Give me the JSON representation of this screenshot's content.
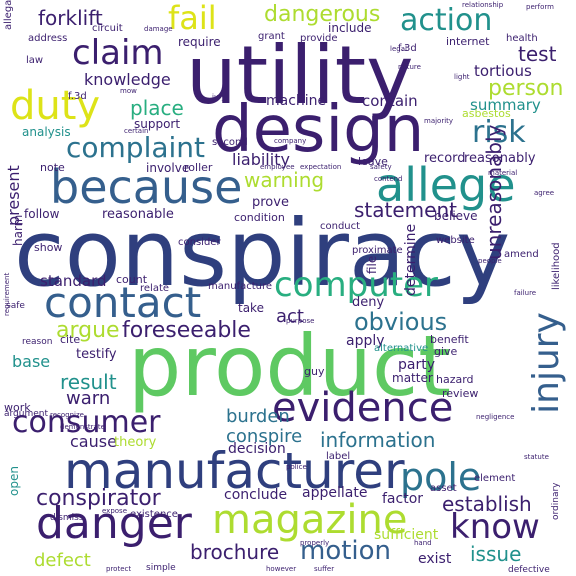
{
  "palette": {
    "indigo": "#3b1f6e",
    "navy": "#2f3f7e",
    "blue": "#355f8d",
    "steel": "#2c728e",
    "teal": "#21918c",
    "sea": "#28ae80",
    "green": "#5ec962",
    "lime": "#addc30",
    "yellow": "#dde318"
  },
  "words": [
    {
      "text": "conspiracy",
      "color": "navy",
      "weight": 1.0
    },
    {
      "text": "product",
      "color": "green",
      "weight": 0.88
    },
    {
      "text": "utility",
      "color": "indigo",
      "weight": 0.86
    },
    {
      "text": "design",
      "color": "indigo",
      "weight": 0.78
    },
    {
      "text": "manufacturer",
      "color": "navy",
      "weight": 0.66
    },
    {
      "text": "because",
      "color": "blue",
      "weight": 0.56
    },
    {
      "text": "allege",
      "color": "teal",
      "weight": 0.52
    },
    {
      "text": "evidence",
      "color": "indigo",
      "weight": 0.5
    },
    {
      "text": "injury",
      "color": "blue",
      "weight": 0.42
    },
    {
      "text": "magazine",
      "color": "lime",
      "weight": 0.44
    },
    {
      "text": "danger",
      "color": "indigo",
      "weight": 0.48
    },
    {
      "text": "contact",
      "color": "blue",
      "weight": 0.46
    },
    {
      "text": "computer",
      "color": "sea",
      "weight": 0.4
    },
    {
      "text": "duty",
      "color": "yellow",
      "weight": 0.42
    },
    {
      "text": "claim",
      "color": "indigo",
      "weight": 0.36
    },
    {
      "text": "pole",
      "color": "steel",
      "weight": 0.4
    },
    {
      "text": "consumer",
      "color": "indigo",
      "weight": 0.32
    },
    {
      "text": "know",
      "color": "indigo",
      "weight": 0.34
    },
    {
      "text": "fail",
      "color": "yellow",
      "weight": 0.3
    },
    {
      "text": "action",
      "color": "teal",
      "weight": 0.28
    },
    {
      "text": "risk",
      "color": "steel",
      "weight": 0.3
    },
    {
      "text": "complaint",
      "color": "steel",
      "weight": 0.28
    },
    {
      "text": "motion",
      "color": "blue",
      "weight": 0.24
    },
    {
      "text": "obvious",
      "color": "steel",
      "weight": 0.24
    },
    {
      "text": "foreseeable",
      "color": "indigo",
      "weight": 0.22
    },
    {
      "text": "information",
      "color": "steel",
      "weight": 0.2
    },
    {
      "text": "unreasonably",
      "color": "indigo",
      "weight": 0.2
    },
    {
      "text": "conspirator",
      "color": "indigo",
      "weight": 0.2
    },
    {
      "text": "dangerous",
      "color": "lime",
      "weight": 0.2
    },
    {
      "text": "warning",
      "color": "lime",
      "weight": 0.2
    },
    {
      "text": "statement",
      "color": "indigo",
      "weight": 0.18
    },
    {
      "text": "forklift",
      "color": "indigo",
      "weight": 0.17
    },
    {
      "text": "person",
      "color": "lime",
      "weight": 0.18
    },
    {
      "text": "argue",
      "color": "lime",
      "weight": 0.18
    },
    {
      "text": "result",
      "color": "teal",
      "weight": 0.16
    },
    {
      "text": "issue",
      "color": "teal",
      "weight": 0.16
    },
    {
      "text": "brochure",
      "color": "indigo",
      "weight": 0.16
    },
    {
      "text": "establish",
      "color": "indigo",
      "weight": 0.16
    },
    {
      "text": "place",
      "color": "sea",
      "weight": 0.16
    },
    {
      "text": "test",
      "color": "indigo",
      "weight": 0.16
    },
    {
      "text": "defect",
      "color": "lime",
      "weight": 0.15
    },
    {
      "text": "burden",
      "color": "steel",
      "weight": 0.15
    },
    {
      "text": "conspire",
      "color": "steel",
      "weight": 0.14
    },
    {
      "text": "knowledge",
      "color": "indigo",
      "weight": 0.13
    },
    {
      "text": "tortious",
      "color": "indigo",
      "weight": 0.13
    },
    {
      "text": "summary",
      "color": "teal",
      "weight": 0.13
    },
    {
      "text": "warn",
      "color": "indigo",
      "weight": 0.14
    },
    {
      "text": "liability",
      "color": "indigo",
      "weight": 0.12
    },
    {
      "text": "contain",
      "color": "indigo",
      "weight": 0.12
    },
    {
      "text": "machine",
      "color": "indigo",
      "weight": 0.12
    },
    {
      "text": "cause",
      "color": "indigo",
      "weight": 0.12
    },
    {
      "text": "base",
      "color": "teal",
      "weight": 0.12
    },
    {
      "text": "act",
      "color": "indigo",
      "weight": 0.12
    },
    {
      "text": "present",
      "color": "indigo",
      "weight": 0.12
    },
    {
      "text": "conclude",
      "color": "indigo",
      "weight": 0.11
    },
    {
      "text": "sufficient",
      "color": "lime",
      "weight": 0.11
    },
    {
      "text": "factor",
      "color": "indigo",
      "weight": 0.11
    },
    {
      "text": "standard",
      "color": "indigo",
      "weight": 0.11
    },
    {
      "text": "determine",
      "color": "indigo",
      "weight": 0.11
    },
    {
      "text": "apply",
      "color": "indigo",
      "weight": 0.1
    },
    {
      "text": "reasonably",
      "color": "indigo",
      "weight": 0.1
    },
    {
      "text": "decision",
      "color": "indigo",
      "weight": 0.1
    },
    {
      "text": "appellate",
      "color": "indigo",
      "weight": 0.1
    },
    {
      "text": "exist",
      "color": "indigo",
      "weight": 0.1
    },
    {
      "text": "party",
      "color": "indigo",
      "weight": 0.1
    },
    {
      "text": "theory",
      "color": "lime",
      "weight": 0.1
    },
    {
      "text": "testify",
      "color": "indigo",
      "weight": 0.09
    },
    {
      "text": "reasonable",
      "color": "indigo",
      "weight": 0.09
    },
    {
      "text": "deny",
      "color": "indigo",
      "weight": 0.09
    },
    {
      "text": "record",
      "color": "indigo",
      "weight": 0.09
    },
    {
      "text": "prove",
      "color": "indigo",
      "weight": 0.09
    },
    {
      "text": "require",
      "color": "indigo",
      "weight": 0.09
    },
    {
      "text": "matter",
      "color": "indigo",
      "weight": 0.09
    },
    {
      "text": "follow",
      "color": "indigo",
      "weight": 0.09
    },
    {
      "text": "harm",
      "color": "indigo",
      "weight": 0.09
    },
    {
      "text": "file",
      "color": "indigo",
      "weight": 0.09
    },
    {
      "text": "take",
      "color": "indigo",
      "weight": 0.09
    },
    {
      "text": "open",
      "color": "teal",
      "weight": 0.09
    },
    {
      "text": "support",
      "color": "indigo",
      "weight": 0.08
    },
    {
      "text": "involve",
      "color": "indigo",
      "weight": 0.08
    },
    {
      "text": "believe",
      "color": "indigo",
      "weight": 0.08
    },
    {
      "text": "analysis",
      "color": "teal",
      "weight": 0.08
    },
    {
      "text": "internet",
      "color": "indigo",
      "weight": 0.07
    },
    {
      "text": "include",
      "color": "indigo",
      "weight": 0.08
    },
    {
      "text": "asbestos",
      "color": "lime",
      "weight": 0.07
    },
    {
      "text": "leave",
      "color": "indigo",
      "weight": 0.07
    },
    {
      "text": "condition",
      "color": "indigo",
      "weight": 0.07
    },
    {
      "text": "roller",
      "color": "indigo",
      "weight": 0.07
    },
    {
      "text": "note",
      "color": "indigo",
      "weight": 0.07
    },
    {
      "text": "count",
      "color": "indigo",
      "weight": 0.07
    },
    {
      "text": "benefit",
      "color": "indigo",
      "weight": 0.07
    },
    {
      "text": "give",
      "color": "indigo",
      "weight": 0.07
    },
    {
      "text": "review",
      "color": "indigo",
      "weight": 0.07
    },
    {
      "text": "hazard",
      "color": "indigo",
      "weight": 0.07
    },
    {
      "text": "cite",
      "color": "indigo",
      "weight": 0.07
    },
    {
      "text": "show",
      "color": "indigo",
      "weight": 0.07
    },
    {
      "text": "work",
      "color": "indigo",
      "weight": 0.07
    },
    {
      "text": "guy",
      "color": "indigo",
      "weight": 0.07
    },
    {
      "text": "second",
      "color": "indigo",
      "weight": 0.06
    },
    {
      "text": "label",
      "color": "indigo",
      "weight": 0.06
    },
    {
      "text": "element",
      "color": "indigo",
      "weight": 0.06
    },
    {
      "text": "asset",
      "color": "indigo",
      "weight": 0.06
    },
    {
      "text": "existence",
      "color": "indigo",
      "weight": 0.06
    },
    {
      "text": "alternative",
      "color": "teal",
      "weight": 0.06
    },
    {
      "text": "proximate",
      "color": "indigo",
      "weight": 0.06
    },
    {
      "text": "website",
      "color": "indigo",
      "weight": 0.06
    },
    {
      "text": "amend",
      "color": "indigo",
      "weight": 0.06
    },
    {
      "text": "conduct",
      "color": "indigo",
      "weight": 0.06
    },
    {
      "text": "consider",
      "color": "indigo",
      "weight": 0.06
    },
    {
      "text": "manufacture",
      "color": "indigo",
      "weight": 0.06
    },
    {
      "text": "relate",
      "color": "indigo",
      "weight": 0.05
    },
    {
      "text": "provide",
      "color": "indigo",
      "weight": 0.05
    },
    {
      "text": "grant",
      "color": "indigo",
      "weight": 0.05
    },
    {
      "text": "circuit",
      "color": "indigo",
      "weight": 0.05
    },
    {
      "text": "address",
      "color": "indigo",
      "weight": 0.05
    },
    {
      "text": "law",
      "color": "indigo",
      "weight": 0.05
    },
    {
      "text": "allegation",
      "color": "indigo",
      "weight": 0.05
    },
    {
      "text": "health",
      "color": "indigo",
      "weight": 0.05
    },
    {
      "text": "likelihood",
      "color": "indigo",
      "weight": 0.05
    },
    {
      "text": "argument",
      "color": "indigo",
      "weight": 0.05
    },
    {
      "text": "dismiss",
      "color": "indigo",
      "weight": 0.05
    },
    {
      "text": "simple",
      "color": "indigo",
      "weight": 0.05
    },
    {
      "text": "ordinary",
      "color": "indigo",
      "weight": 0.05
    },
    {
      "text": "defective",
      "color": "indigo",
      "weight": 0.05
    },
    {
      "text": "safe",
      "color": "indigo",
      "weight": 0.04
    },
    {
      "text": "f.3d",
      "color": "indigo",
      "weight": 0.05
    },
    {
      "text": "f.3d",
      "color": "indigo",
      "weight": 0.05
    },
    {
      "text": "relationship",
      "color": "indigo",
      "weight": 0.03
    },
    {
      "text": "perform",
      "color": "indigo",
      "weight": 0.03
    },
    {
      "text": "light",
      "color": "indigo",
      "weight": 0.03
    },
    {
      "text": "nature",
      "color": "indigo",
      "weight": 0.03
    },
    {
      "text": "legal",
      "color": "indigo",
      "weight": 0.03
    },
    {
      "text": "agree",
      "color": "indigo",
      "weight": 0.03
    },
    {
      "text": "material",
      "color": "indigo",
      "weight": 0.03
    },
    {
      "text": "majority",
      "color": "indigo",
      "weight": 0.03
    },
    {
      "text": "failure",
      "color": "indigo",
      "weight": 0.03
    },
    {
      "text": "people",
      "color": "indigo",
      "weight": 0.03
    },
    {
      "text": "employee",
      "color": "indigo",
      "weight": 0.03
    },
    {
      "text": "expectation",
      "color": "indigo",
      "weight": 0.03
    },
    {
      "text": "safety",
      "color": "indigo",
      "weight": 0.03
    },
    {
      "text": "contend",
      "color": "indigo",
      "weight": 0.03
    },
    {
      "text": "company",
      "color": "indigo",
      "weight": 0.03
    },
    {
      "text": "certain",
      "color": "indigo",
      "weight": 0.03
    },
    {
      "text": "purpose",
      "color": "indigo",
      "weight": 0.03
    },
    {
      "text": "properly",
      "color": "indigo",
      "weight": 0.03
    },
    {
      "text": "police",
      "color": "indigo",
      "weight": 0.03
    },
    {
      "text": "however",
      "color": "indigo",
      "weight": 0.03
    },
    {
      "text": "protect",
      "color": "indigo",
      "weight": 0.03
    },
    {
      "text": "suffer",
      "color": "indigo",
      "weight": 0.03
    },
    {
      "text": "expose",
      "color": "indigo",
      "weight": 0.03
    },
    {
      "text": "reason",
      "color": "indigo",
      "weight": 0.03
    },
    {
      "text": "statute",
      "color": "indigo",
      "weight": 0.03
    },
    {
      "text": "requirement",
      "color": "indigo",
      "weight": 0.03
    },
    {
      "text": "demonstrate",
      "color": "indigo",
      "weight": 0.03
    },
    {
      "text": "recognize",
      "color": "indigo",
      "weight": 0.03
    },
    {
      "text": "negligence",
      "color": "indigo",
      "weight": 0.03
    },
    {
      "text": "hand",
      "color": "indigo",
      "weight": 0.03
    },
    {
      "text": "mow",
      "color": "indigo",
      "weight": 0.03
    },
    {
      "text": "damage",
      "color": "indigo",
      "weight": 0.03
    },
    {
      "text": "jury",
      "color": "indigo",
      "weight": 0.03
    }
  ]
}
